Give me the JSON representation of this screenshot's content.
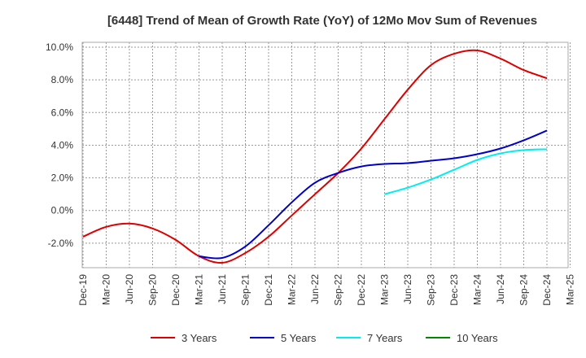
{
  "chart_data": {
    "type": "line",
    "title": "[6448]  Trend of Mean of Growth Rate (YoY) of 12Mo Mov Sum of Revenues",
    "xlabel": "",
    "ylabel": "",
    "ylim": [
      -3.5,
      10.3
    ],
    "y_ticks": [
      -2.0,
      0.0,
      2.0,
      4.0,
      6.0,
      8.0,
      10.0
    ],
    "y_tick_labels": [
      "-2.0%",
      "0.0%",
      "2.0%",
      "4.0%",
      "6.0%",
      "8.0%",
      "10.0%"
    ],
    "x_tick_labels": [
      "Dec-19",
      "Mar-20",
      "Jun-20",
      "Sep-20",
      "Dec-20",
      "Mar-21",
      "Jun-21",
      "Sep-21",
      "Dec-21",
      "Mar-22",
      "Jun-22",
      "Sep-22",
      "Dec-22",
      "Mar-23",
      "Jun-23",
      "Sep-23",
      "Dec-23",
      "Mar-24",
      "Jun-24",
      "Sep-24",
      "Dec-24",
      "Mar-25"
    ],
    "grid": true,
    "legend_position": "bottom",
    "series": [
      {
        "name": "3 Years",
        "color": "#dd0000",
        "values": [
          -1.6,
          -1.0,
          -0.8,
          -1.1,
          -1.8,
          -2.8,
          -3.2,
          -2.6,
          -1.6,
          -0.3,
          1.0,
          2.3,
          3.8,
          5.6,
          7.4,
          8.9,
          9.6,
          9.8,
          9.3,
          8.6,
          8.1
        ]
      },
      {
        "name": "5 Years",
        "color": "#0000cc",
        "values": [
          null,
          null,
          null,
          null,
          null,
          -2.8,
          -2.9,
          -2.2,
          -0.9,
          0.5,
          1.7,
          2.3,
          2.7,
          2.85,
          2.9,
          3.05,
          3.2,
          3.45,
          3.8,
          4.3,
          4.9
        ]
      },
      {
        "name": "7 Years",
        "color": "#00eeee",
        "values": [
          null,
          null,
          null,
          null,
          null,
          null,
          null,
          null,
          null,
          null,
          null,
          null,
          null,
          1.0,
          1.4,
          1.9,
          2.5,
          3.1,
          3.5,
          3.7,
          3.75
        ]
      },
      {
        "name": "10 Years",
        "color": "#008800",
        "values": []
      }
    ]
  }
}
